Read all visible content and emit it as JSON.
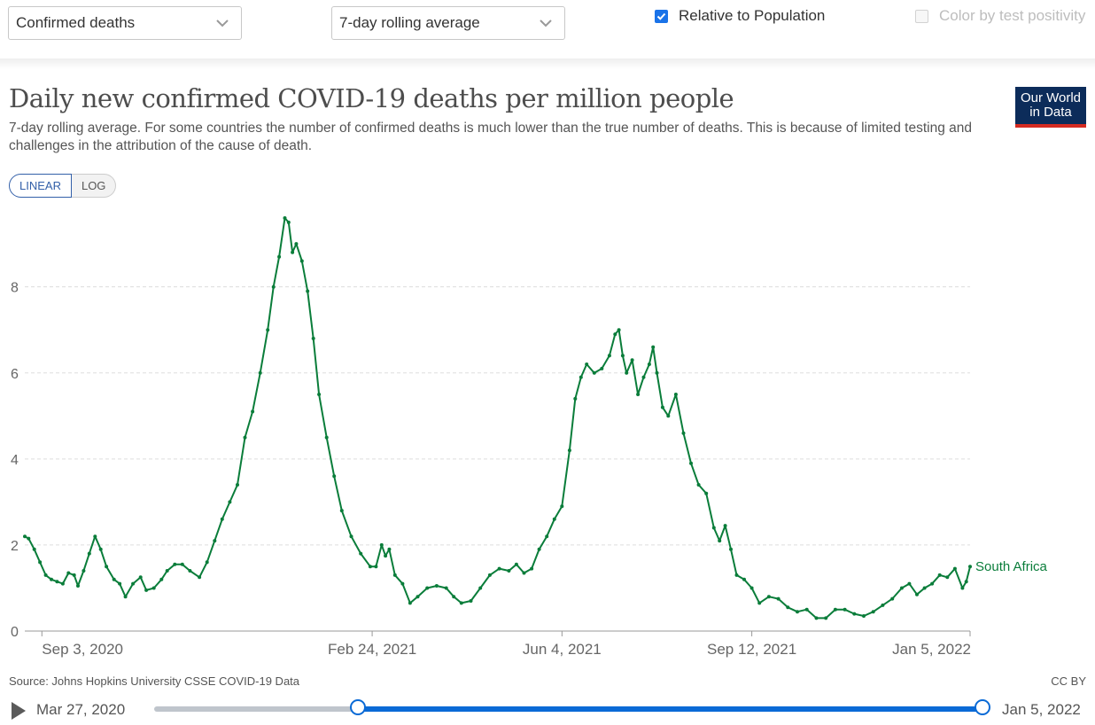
{
  "controls": {
    "metric_select": "Confirmed deaths",
    "interval_select": "7-day rolling average",
    "relative_checkbox": {
      "label": "Relative to Population",
      "checked": true
    },
    "positivity_checkbox": {
      "label": "Color by test positivity",
      "checked": false
    }
  },
  "header": {
    "title": "Daily new confirmed COVID-19 deaths per million people",
    "subtitle": "7-day rolling average. For some countries the number of confirmed deaths is much lower than the true number of deaths. This is because of limited testing and challenges in the attribution of the cause of death.",
    "logo_line1": "Our World",
    "logo_line2": "in Data"
  },
  "scale_toggle": {
    "linear": "LINEAR",
    "log": "LOG",
    "active": "LINEAR"
  },
  "chart_data": {
    "type": "line",
    "title": "Daily new confirmed COVID-19 deaths per million people",
    "x_start": "2020-08-25",
    "x_end": "2022-01-05",
    "x_tick_labels": [
      {
        "date": "2020-09-03",
        "label": "Sep 3, 2020"
      },
      {
        "date": "2021-02-24",
        "label": "Feb 24, 2021"
      },
      {
        "date": "2021-06-04",
        "label": "Jun 4, 2021"
      },
      {
        "date": "2021-09-12",
        "label": "Sep 12, 2021"
      },
      {
        "date": "2022-01-05",
        "label": "Jan 5, 2022"
      }
    ],
    "y_ticks": [
      0,
      2,
      4,
      6,
      8
    ],
    "ylim": [
      0,
      9.6
    ],
    "grid": true,
    "series": [
      {
        "name": "South Africa",
        "color": "#0a7d3a",
        "points": [
          [
            "2020-08-25",
            2.2
          ],
          [
            "2020-08-27",
            2.15
          ],
          [
            "2020-08-30",
            1.9
          ],
          [
            "2020-09-02",
            1.6
          ],
          [
            "2020-09-05",
            1.3
          ],
          [
            "2020-09-08",
            1.2
          ],
          [
            "2020-09-11",
            1.15
          ],
          [
            "2020-09-14",
            1.1
          ],
          [
            "2020-09-17",
            1.35
          ],
          [
            "2020-09-20",
            1.3
          ],
          [
            "2020-09-22",
            1.05
          ],
          [
            "2020-09-25",
            1.4
          ],
          [
            "2020-09-28",
            1.8
          ],
          [
            "2020-10-01",
            2.2
          ],
          [
            "2020-10-04",
            1.9
          ],
          [
            "2020-10-07",
            1.5
          ],
          [
            "2020-10-11",
            1.2
          ],
          [
            "2020-10-14",
            1.1
          ],
          [
            "2020-10-17",
            0.8
          ],
          [
            "2020-10-21",
            1.1
          ],
          [
            "2020-10-25",
            1.25
          ],
          [
            "2020-10-28",
            0.95
          ],
          [
            "2020-11-01",
            1.0
          ],
          [
            "2020-11-05",
            1.2
          ],
          [
            "2020-11-08",
            1.4
          ],
          [
            "2020-11-12",
            1.55
          ],
          [
            "2020-11-16",
            1.55
          ],
          [
            "2020-11-20",
            1.4
          ],
          [
            "2020-11-25",
            1.25
          ],
          [
            "2020-11-29",
            1.6
          ],
          [
            "2020-12-03",
            2.1
          ],
          [
            "2020-12-07",
            2.6
          ],
          [
            "2020-12-11",
            3.0
          ],
          [
            "2020-12-15",
            3.4
          ],
          [
            "2020-12-19",
            4.5
          ],
          [
            "2020-12-23",
            5.1
          ],
          [
            "2020-12-27",
            6.0
          ],
          [
            "2020-12-31",
            7.0
          ],
          [
            "2021-01-03",
            8.0
          ],
          [
            "2021-01-06",
            8.7
          ],
          [
            "2021-01-09",
            9.6
          ],
          [
            "2021-01-11",
            9.5
          ],
          [
            "2021-01-13",
            8.8
          ],
          [
            "2021-01-15",
            9.0
          ],
          [
            "2021-01-18",
            8.6
          ],
          [
            "2021-01-21",
            7.9
          ],
          [
            "2021-01-24",
            6.8
          ],
          [
            "2021-01-27",
            5.5
          ],
          [
            "2021-01-31",
            4.5
          ],
          [
            "2021-02-04",
            3.6
          ],
          [
            "2021-02-08",
            2.8
          ],
          [
            "2021-02-13",
            2.2
          ],
          [
            "2021-02-18",
            1.8
          ],
          [
            "2021-02-23",
            1.5
          ],
          [
            "2021-02-26",
            1.5
          ],
          [
            "2021-03-01",
            2.0
          ],
          [
            "2021-03-03",
            1.75
          ],
          [
            "2021-03-05",
            1.9
          ],
          [
            "2021-03-08",
            1.3
          ],
          [
            "2021-03-12",
            1.1
          ],
          [
            "2021-03-16",
            0.65
          ],
          [
            "2021-03-20",
            0.8
          ],
          [
            "2021-03-25",
            1.0
          ],
          [
            "2021-03-30",
            1.05
          ],
          [
            "2021-04-04",
            1.0
          ],
          [
            "2021-04-08",
            0.8
          ],
          [
            "2021-04-12",
            0.65
          ],
          [
            "2021-04-17",
            0.7
          ],
          [
            "2021-04-22",
            1.0
          ],
          [
            "2021-04-27",
            1.3
          ],
          [
            "2021-05-02",
            1.45
          ],
          [
            "2021-05-07",
            1.4
          ],
          [
            "2021-05-11",
            1.55
          ],
          [
            "2021-05-15",
            1.35
          ],
          [
            "2021-05-19",
            1.45
          ],
          [
            "2021-05-23",
            1.9
          ],
          [
            "2021-05-27",
            2.2
          ],
          [
            "2021-05-31",
            2.6
          ],
          [
            "2021-06-04",
            2.9
          ],
          [
            "2021-06-08",
            4.2
          ],
          [
            "2021-06-11",
            5.4
          ],
          [
            "2021-06-14",
            5.9
          ],
          [
            "2021-06-17",
            6.2
          ],
          [
            "2021-06-21",
            6.0
          ],
          [
            "2021-06-25",
            6.1
          ],
          [
            "2021-06-29",
            6.4
          ],
          [
            "2021-07-02",
            6.9
          ],
          [
            "2021-07-04",
            7.0
          ],
          [
            "2021-07-06",
            6.4
          ],
          [
            "2021-07-08",
            6.0
          ],
          [
            "2021-07-11",
            6.3
          ],
          [
            "2021-07-14",
            5.5
          ],
          [
            "2021-07-17",
            5.9
          ],
          [
            "2021-07-20",
            6.2
          ],
          [
            "2021-07-22",
            6.6
          ],
          [
            "2021-07-24",
            6.0
          ],
          [
            "2021-07-27",
            5.2
          ],
          [
            "2021-07-30",
            5.0
          ],
          [
            "2021-08-03",
            5.5
          ],
          [
            "2021-08-07",
            4.6
          ],
          [
            "2021-08-11",
            3.9
          ],
          [
            "2021-08-15",
            3.4
          ],
          [
            "2021-08-19",
            3.2
          ],
          [
            "2021-08-23",
            2.4
          ],
          [
            "2021-08-26",
            2.1
          ],
          [
            "2021-08-29",
            2.45
          ],
          [
            "2021-09-01",
            1.9
          ],
          [
            "2021-09-04",
            1.3
          ],
          [
            "2021-09-08",
            1.2
          ],
          [
            "2021-09-12",
            1.0
          ],
          [
            "2021-09-16",
            0.65
          ],
          [
            "2021-09-21",
            0.8
          ],
          [
            "2021-09-26",
            0.75
          ],
          [
            "2021-10-01",
            0.55
          ],
          [
            "2021-10-06",
            0.45
          ],
          [
            "2021-10-11",
            0.5
          ],
          [
            "2021-10-16",
            0.3
          ],
          [
            "2021-10-21",
            0.3
          ],
          [
            "2021-10-26",
            0.5
          ],
          [
            "2021-10-31",
            0.5
          ],
          [
            "2021-11-05",
            0.4
          ],
          [
            "2021-11-10",
            0.35
          ],
          [
            "2021-11-15",
            0.45
          ],
          [
            "2021-11-20",
            0.6
          ],
          [
            "2021-11-25",
            0.75
          ],
          [
            "2021-11-30",
            1.0
          ],
          [
            "2021-12-04",
            1.1
          ],
          [
            "2021-12-08",
            0.85
          ],
          [
            "2021-12-12",
            1.0
          ],
          [
            "2021-12-16",
            1.1
          ],
          [
            "2021-12-20",
            1.3
          ],
          [
            "2021-12-24",
            1.25
          ],
          [
            "2021-12-28",
            1.45
          ],
          [
            "2022-01-01",
            1.0
          ],
          [
            "2022-01-03",
            1.15
          ],
          [
            "2022-01-05",
            1.5
          ]
        ]
      }
    ]
  },
  "source": "Source: Johns Hopkins University CSSE COVID-19 Data",
  "license": "CC BY",
  "timeline": {
    "start_label": "Mar 27, 2020",
    "end_label": "Jan 5, 2022",
    "range_start_fraction": 0.246,
    "range_end_fraction": 1.0
  }
}
